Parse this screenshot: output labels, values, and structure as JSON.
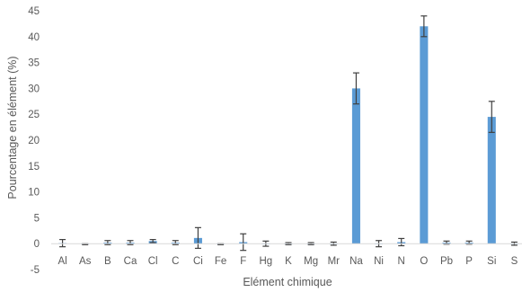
{
  "chart_data": {
    "type": "bar",
    "title": "",
    "xlabel": "Elément chimique",
    "ylabel": "Pourcentage en élément (%)",
    "ylim": [
      -5,
      45
    ],
    "yticks": [
      -5,
      0,
      5,
      10,
      15,
      20,
      25,
      30,
      35,
      40,
      45
    ],
    "grid": false,
    "legend": "none",
    "bar_color": "#5b9bd5",
    "error_bar_color": "#404040",
    "categories": [
      "Al",
      "As",
      "B",
      "Ca",
      "Cl",
      "C",
      "Ci",
      "Fe",
      "F",
      "Hg",
      "K",
      "Mg",
      "Mr",
      "Na",
      "Ni",
      "N",
      "O",
      "Pb",
      "P",
      "Si",
      "S"
    ],
    "values": [
      0.1,
      -0.1,
      0.2,
      0.2,
      0.5,
      0.2,
      1.1,
      -0.1,
      0.3,
      0.0,
      0.0,
      0.0,
      0.0,
      30.0,
      0.0,
      0.3,
      42.0,
      0.2,
      0.2,
      24.5,
      0.0
    ],
    "errors": [
      0.7,
      0.1,
      0.4,
      0.4,
      0.3,
      0.4,
      2.0,
      0.1,
      1.6,
      0.5,
      0.2,
      0.2,
      0.3,
      3.0,
      0.6,
      0.7,
      2.0,
      0.3,
      0.3,
      3.0,
      0.3
    ]
  }
}
